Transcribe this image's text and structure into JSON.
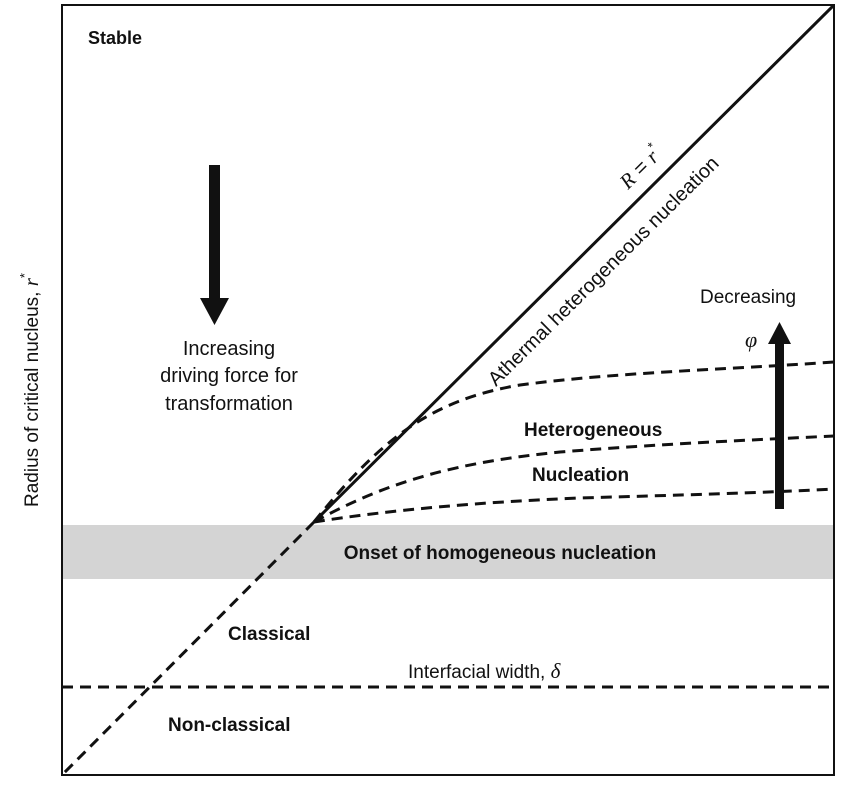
{
  "ylabel_main": "Radius of critical nucleus, ",
  "ylabel_symbol": "r",
  "ylabel_sup": "*",
  "regions": {
    "stable": "Stable",
    "onset": "Onset of homogeneous nucleation",
    "classical": "Classical",
    "non_classical": "Non-classical"
  },
  "driving_force": {
    "line1": "Increasing",
    "line2": "driving force for",
    "line3": "transformation"
  },
  "diagonal": {
    "eq_r": "R",
    "eq_eq": " = ",
    "eq_rstar": "r",
    "eq_sup": "*",
    "label": "Athermal heterogeneous nucleation"
  },
  "heterogeneous": {
    "line1": "Heterogeneous",
    "line2": "Nucleation"
  },
  "decreasing": {
    "label": "Decreasing",
    "symbol": "φ"
  },
  "interfacial": {
    "label": "Interfacial width, ",
    "symbol": "δ"
  },
  "colors": {
    "band": "#d4d4d4",
    "line": "#111111"
  }
}
